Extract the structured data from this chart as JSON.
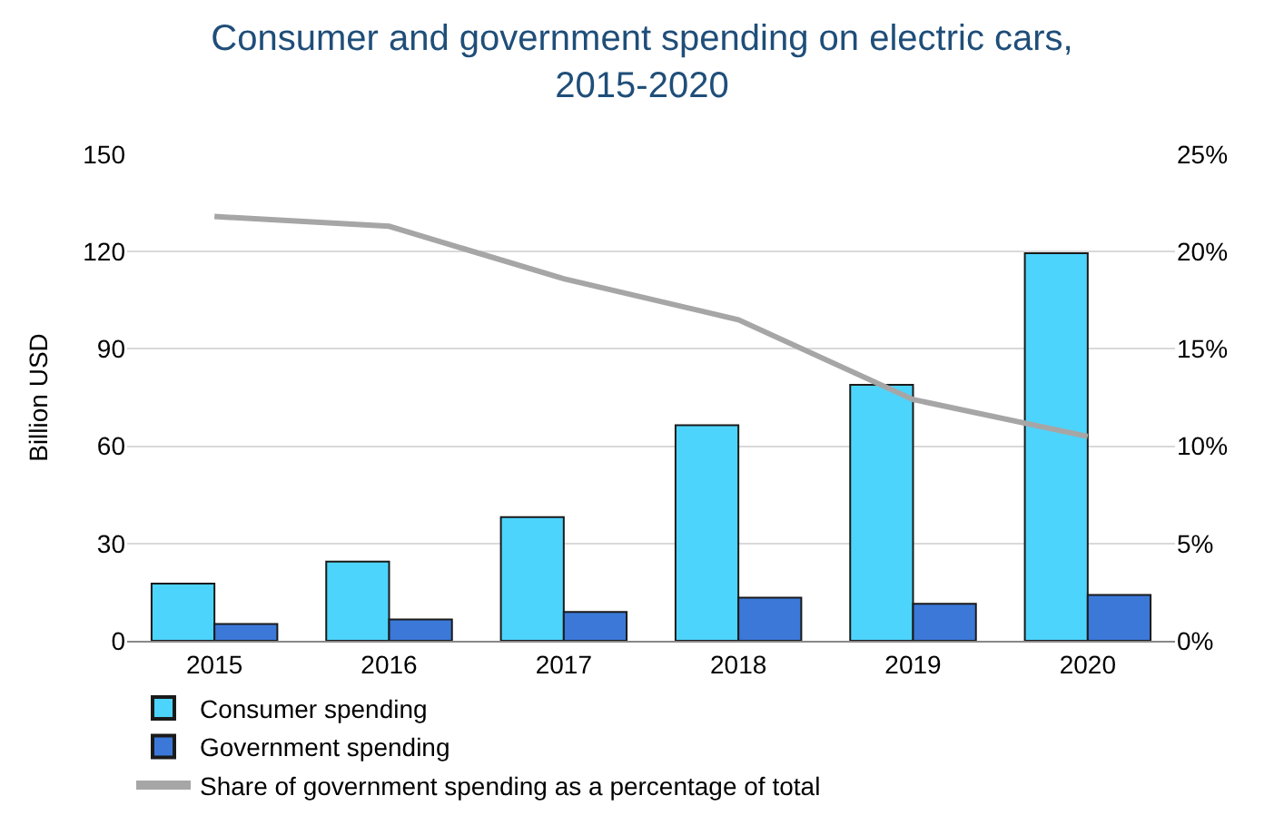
{
  "chart_data": {
    "type": "bar",
    "title": "Consumer and government spending on electric cars,\n2015-2020",
    "ylabel": "Billion USD",
    "categories": [
      "2015",
      "2016",
      "2017",
      "2018",
      "2019",
      "2020"
    ],
    "series": [
      {
        "name": "Consumer spending",
        "color": "#4dd4fc",
        "values": [
          17.6,
          24.4,
          38.1,
          66.5,
          78.9,
          119.5
        ]
      },
      {
        "name": "Government spending",
        "color": "#3b78d8",
        "values": [
          5.2,
          6.6,
          8.9,
          13.3,
          11.4,
          14.1
        ]
      },
      {
        "name": "Share of government spending as a percentage of total",
        "type": "line",
        "axis": "y2",
        "color": "#a6a6a6",
        "values": [
          21.8,
          21.3,
          18.6,
          16.5,
          12.4,
          10.5
        ]
      }
    ],
    "ylim": [
      0,
      150
    ],
    "yticks": [
      0,
      30,
      60,
      90,
      120,
      150
    ],
    "y2lim": [
      0,
      25
    ],
    "y2ticks": [
      {
        "value": 0,
        "label": "0%"
      },
      {
        "value": 5,
        "label": "5%"
      },
      {
        "value": 10,
        "label": "10%"
      },
      {
        "value": 15,
        "label": "15%"
      },
      {
        "value": 20,
        "label": "20%"
      },
      {
        "value": 25,
        "label": "25%"
      }
    ],
    "grid": "y",
    "legend": "bottom left"
  }
}
